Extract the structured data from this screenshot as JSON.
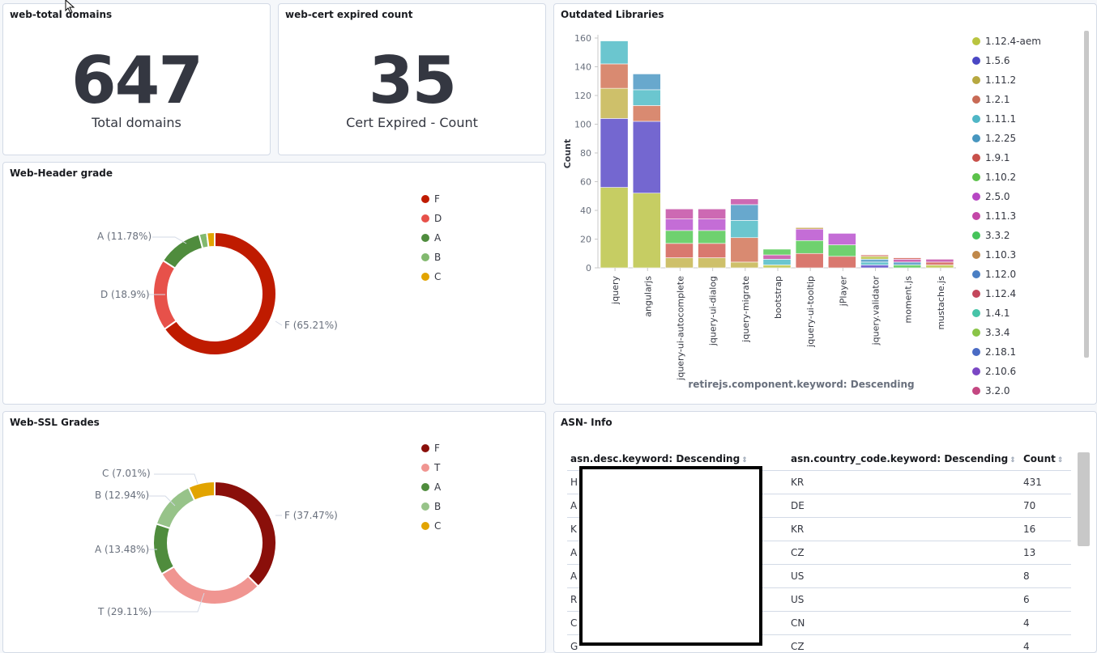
{
  "panels": {
    "total_domains": {
      "title": "web-total domains",
      "value": "647",
      "label": "Total domains"
    },
    "cert_expired": {
      "title": "web-cert expired count",
      "value": "35",
      "label": "Cert Expired - Count"
    },
    "header_grade": {
      "title": "Web-Header grade",
      "legend": [
        {
          "label": "F",
          "color": "#bf1b00"
        },
        {
          "label": "D",
          "color": "#e7514a"
        },
        {
          "label": "A",
          "color": "#4f8c3d"
        },
        {
          "label": "B",
          "color": "#82b96f"
        },
        {
          "label": "C",
          "color": "#e2a400"
        }
      ],
      "labels": {
        "a": "A (11.78%)",
        "d": "D (18.9%)",
        "f": "F (65.21%)"
      }
    },
    "ssl_grades": {
      "title": "Web-SSL Grades",
      "legend": [
        {
          "label": "F",
          "color": "#8a0f0a"
        },
        {
          "label": "T",
          "color": "#f09591"
        },
        {
          "label": "A",
          "color": "#4f8c3d"
        },
        {
          "label": "B",
          "color": "#97c389"
        },
        {
          "label": "C",
          "color": "#e2a400"
        }
      ],
      "labels": {
        "c": "C (7.01%)",
        "b": "B (12.94%)",
        "a": "A (13.48%)",
        "t": "T (29.11%)",
        "f": "F (37.47%)"
      }
    },
    "outdated_libraries": {
      "title": "Outdated Libraries",
      "legend": [
        {
          "label": "1.12.4-aem",
          "color": "#b9c43f"
        },
        {
          "label": "1.5.6",
          "color": "#4a47c4"
        },
        {
          "label": "1.11.2",
          "color": "#b7a840"
        },
        {
          "label": "1.2.1",
          "color": "#c86a55"
        },
        {
          "label": "1.11.1",
          "color": "#4fb6c6"
        },
        {
          "label": "1.2.25",
          "color": "#4796bf"
        },
        {
          "label": "1.9.1",
          "color": "#c8504a"
        },
        {
          "label": "1.10.2",
          "color": "#5bc24a"
        },
        {
          "label": "2.5.0",
          "color": "#b747c4"
        },
        {
          "label": "1.11.3",
          "color": "#c447a8"
        },
        {
          "label": "3.3.2",
          "color": "#45c45a"
        },
        {
          "label": "1.10.3",
          "color": "#c0884a"
        },
        {
          "label": "1.12.0",
          "color": "#4a7fc4"
        },
        {
          "label": "1.12.4",
          "color": "#c4475c"
        },
        {
          "label": "1.4.1",
          "color": "#47c4a8"
        },
        {
          "label": "3.3.4",
          "color": "#8ac447"
        },
        {
          "label": "2.18.1",
          "color": "#4a6bc4"
        },
        {
          "label": "2.10.6",
          "color": "#7a47c4"
        },
        {
          "label": "3.2.0",
          "color": "#c44781"
        }
      ]
    },
    "asn_info": {
      "title": "ASN- Info",
      "columns": [
        "asn.desc.keyword: Descending",
        "asn.country_code.keyword: Descending",
        "Count"
      ],
      "rows": [
        {
          "desc": "H",
          "cc": "KR",
          "count": "431"
        },
        {
          "desc": "A",
          "cc": "DE",
          "count": "70"
        },
        {
          "desc": "K",
          "cc": "KR",
          "count": "16"
        },
        {
          "desc": "A",
          "cc": "CZ",
          "count": "13"
        },
        {
          "desc": "A",
          "cc": "US",
          "count": "8"
        },
        {
          "desc": "R",
          "cc": "US",
          "count": "6"
        },
        {
          "desc": "C",
          "cc": "CN",
          "count": "4"
        },
        {
          "desc": "G",
          "cc": "CZ",
          "count": "4"
        }
      ]
    }
  },
  "chart_data": [
    {
      "type": "pie",
      "title": "Web-Header grade",
      "slices": [
        {
          "label": "F",
          "value": 65.21,
          "color": "#bf1b00"
        },
        {
          "label": "D",
          "value": 18.9,
          "color": "#e7514a"
        },
        {
          "label": "A",
          "value": 11.78,
          "color": "#4f8c3d"
        },
        {
          "label": "B",
          "value": 2.05,
          "color": "#82b96f"
        },
        {
          "label": "C",
          "value": 2.06,
          "color": "#e2a400"
        }
      ]
    },
    {
      "type": "pie",
      "title": "Web-SSL Grades",
      "slices": [
        {
          "label": "F",
          "value": 37.47,
          "color": "#8a0f0a"
        },
        {
          "label": "T",
          "value": 29.11,
          "color": "#f09591"
        },
        {
          "label": "A",
          "value": 13.48,
          "color": "#4f8c3d"
        },
        {
          "label": "B",
          "value": 12.94,
          "color": "#97c389"
        },
        {
          "label": "C",
          "value": 7.01,
          "color": "#e2a400"
        }
      ]
    },
    {
      "type": "bar",
      "title": "Outdated Libraries",
      "xlabel": "retirejs.component.keyword: Descending",
      "ylabel": "Count",
      "ylim": [
        0,
        160
      ],
      "yticks": [
        0,
        20,
        40,
        60,
        80,
        100,
        120,
        140,
        160
      ],
      "stacked": true,
      "categories": [
        "jquery",
        "angularjs",
        "jquery-ui-autocomplete",
        "jquery-ui-dialog",
        "jquery-migrate",
        "bootstrap",
        "jquery-ui-tooltip",
        "jPlayer",
        "jquery.validator",
        "moment.js",
        "mustache.js"
      ],
      "stacks": [
        [
          {
            "v": 56,
            "c": "#c6cd63"
          },
          {
            "v": 48,
            "c": "#7467d0"
          },
          {
            "v": 21,
            "c": "#cec06a"
          },
          {
            "v": 17,
            "c": "#d98a71"
          },
          {
            "v": 16,
            "c": "#6bc6cf"
          }
        ],
        [
          {
            "v": 52,
            "c": "#c6cd63"
          },
          {
            "v": 50,
            "c": "#7467d0"
          },
          {
            "v": 11,
            "c": "#d98a71"
          },
          {
            "v": 11,
            "c": "#6bc6cf"
          },
          {
            "v": 11,
            "c": "#68a8cd"
          }
        ],
        [
          {
            "v": 7,
            "c": "#cec06a"
          },
          {
            "v": 10,
            "c": "#d9786f"
          },
          {
            "v": 9,
            "c": "#6fd16f"
          },
          {
            "v": 8,
            "c": "#c46dd6"
          },
          {
            "v": 7,
            "c": "#cd69b3"
          }
        ],
        [
          {
            "v": 7,
            "c": "#cec06a"
          },
          {
            "v": 10,
            "c": "#d9786f"
          },
          {
            "v": 9,
            "c": "#6fd16f"
          },
          {
            "v": 8,
            "c": "#c46dd6"
          },
          {
            "v": 7,
            "c": "#cd69b3"
          }
        ],
        [
          {
            "v": 4,
            "c": "#cec06a"
          },
          {
            "v": 17,
            "c": "#d98a71"
          },
          {
            "v": 12,
            "c": "#6bc6cf"
          },
          {
            "v": 11,
            "c": "#68a8cd"
          },
          {
            "v": 4,
            "c": "#cd69b3"
          }
        ],
        [
          {
            "v": 2,
            "c": "#c6cd63"
          },
          {
            "v": 4,
            "c": "#6bc6cf"
          },
          {
            "v": 3,
            "c": "#cd69b3"
          },
          {
            "v": 4,
            "c": "#6fd16f"
          }
        ],
        [
          {
            "v": 10,
            "c": "#d9786f"
          },
          {
            "v": 9,
            "c": "#6fd16f"
          },
          {
            "v": 8,
            "c": "#c46dd6"
          },
          {
            "v": 1,
            "c": "#c6a04a"
          }
        ],
        [
          {
            "v": 8,
            "c": "#d9786f"
          },
          {
            "v": 8,
            "c": "#6fd16f"
          },
          {
            "v": 8,
            "c": "#c46dd6"
          }
        ],
        [
          {
            "v": 2,
            "c": "#7467d0"
          },
          {
            "v": 2,
            "c": "#6bc6cf"
          },
          {
            "v": 2,
            "c": "#68a8cd"
          },
          {
            "v": 2,
            "c": "#c6cd63"
          },
          {
            "v": 1,
            "c": "#d9786f"
          }
        ],
        [
          {
            "v": 2,
            "c": "#6fd16f"
          },
          {
            "v": 2,
            "c": "#68a8cd"
          },
          {
            "v": 2,
            "c": "#cd69b3"
          },
          {
            "v": 1,
            "c": "#d9786f"
          }
        ],
        [
          {
            "v": 2,
            "c": "#c6cd63"
          },
          {
            "v": 2,
            "c": "#d9786f"
          },
          {
            "v": 2,
            "c": "#cd69b3"
          }
        ]
      ]
    }
  ]
}
